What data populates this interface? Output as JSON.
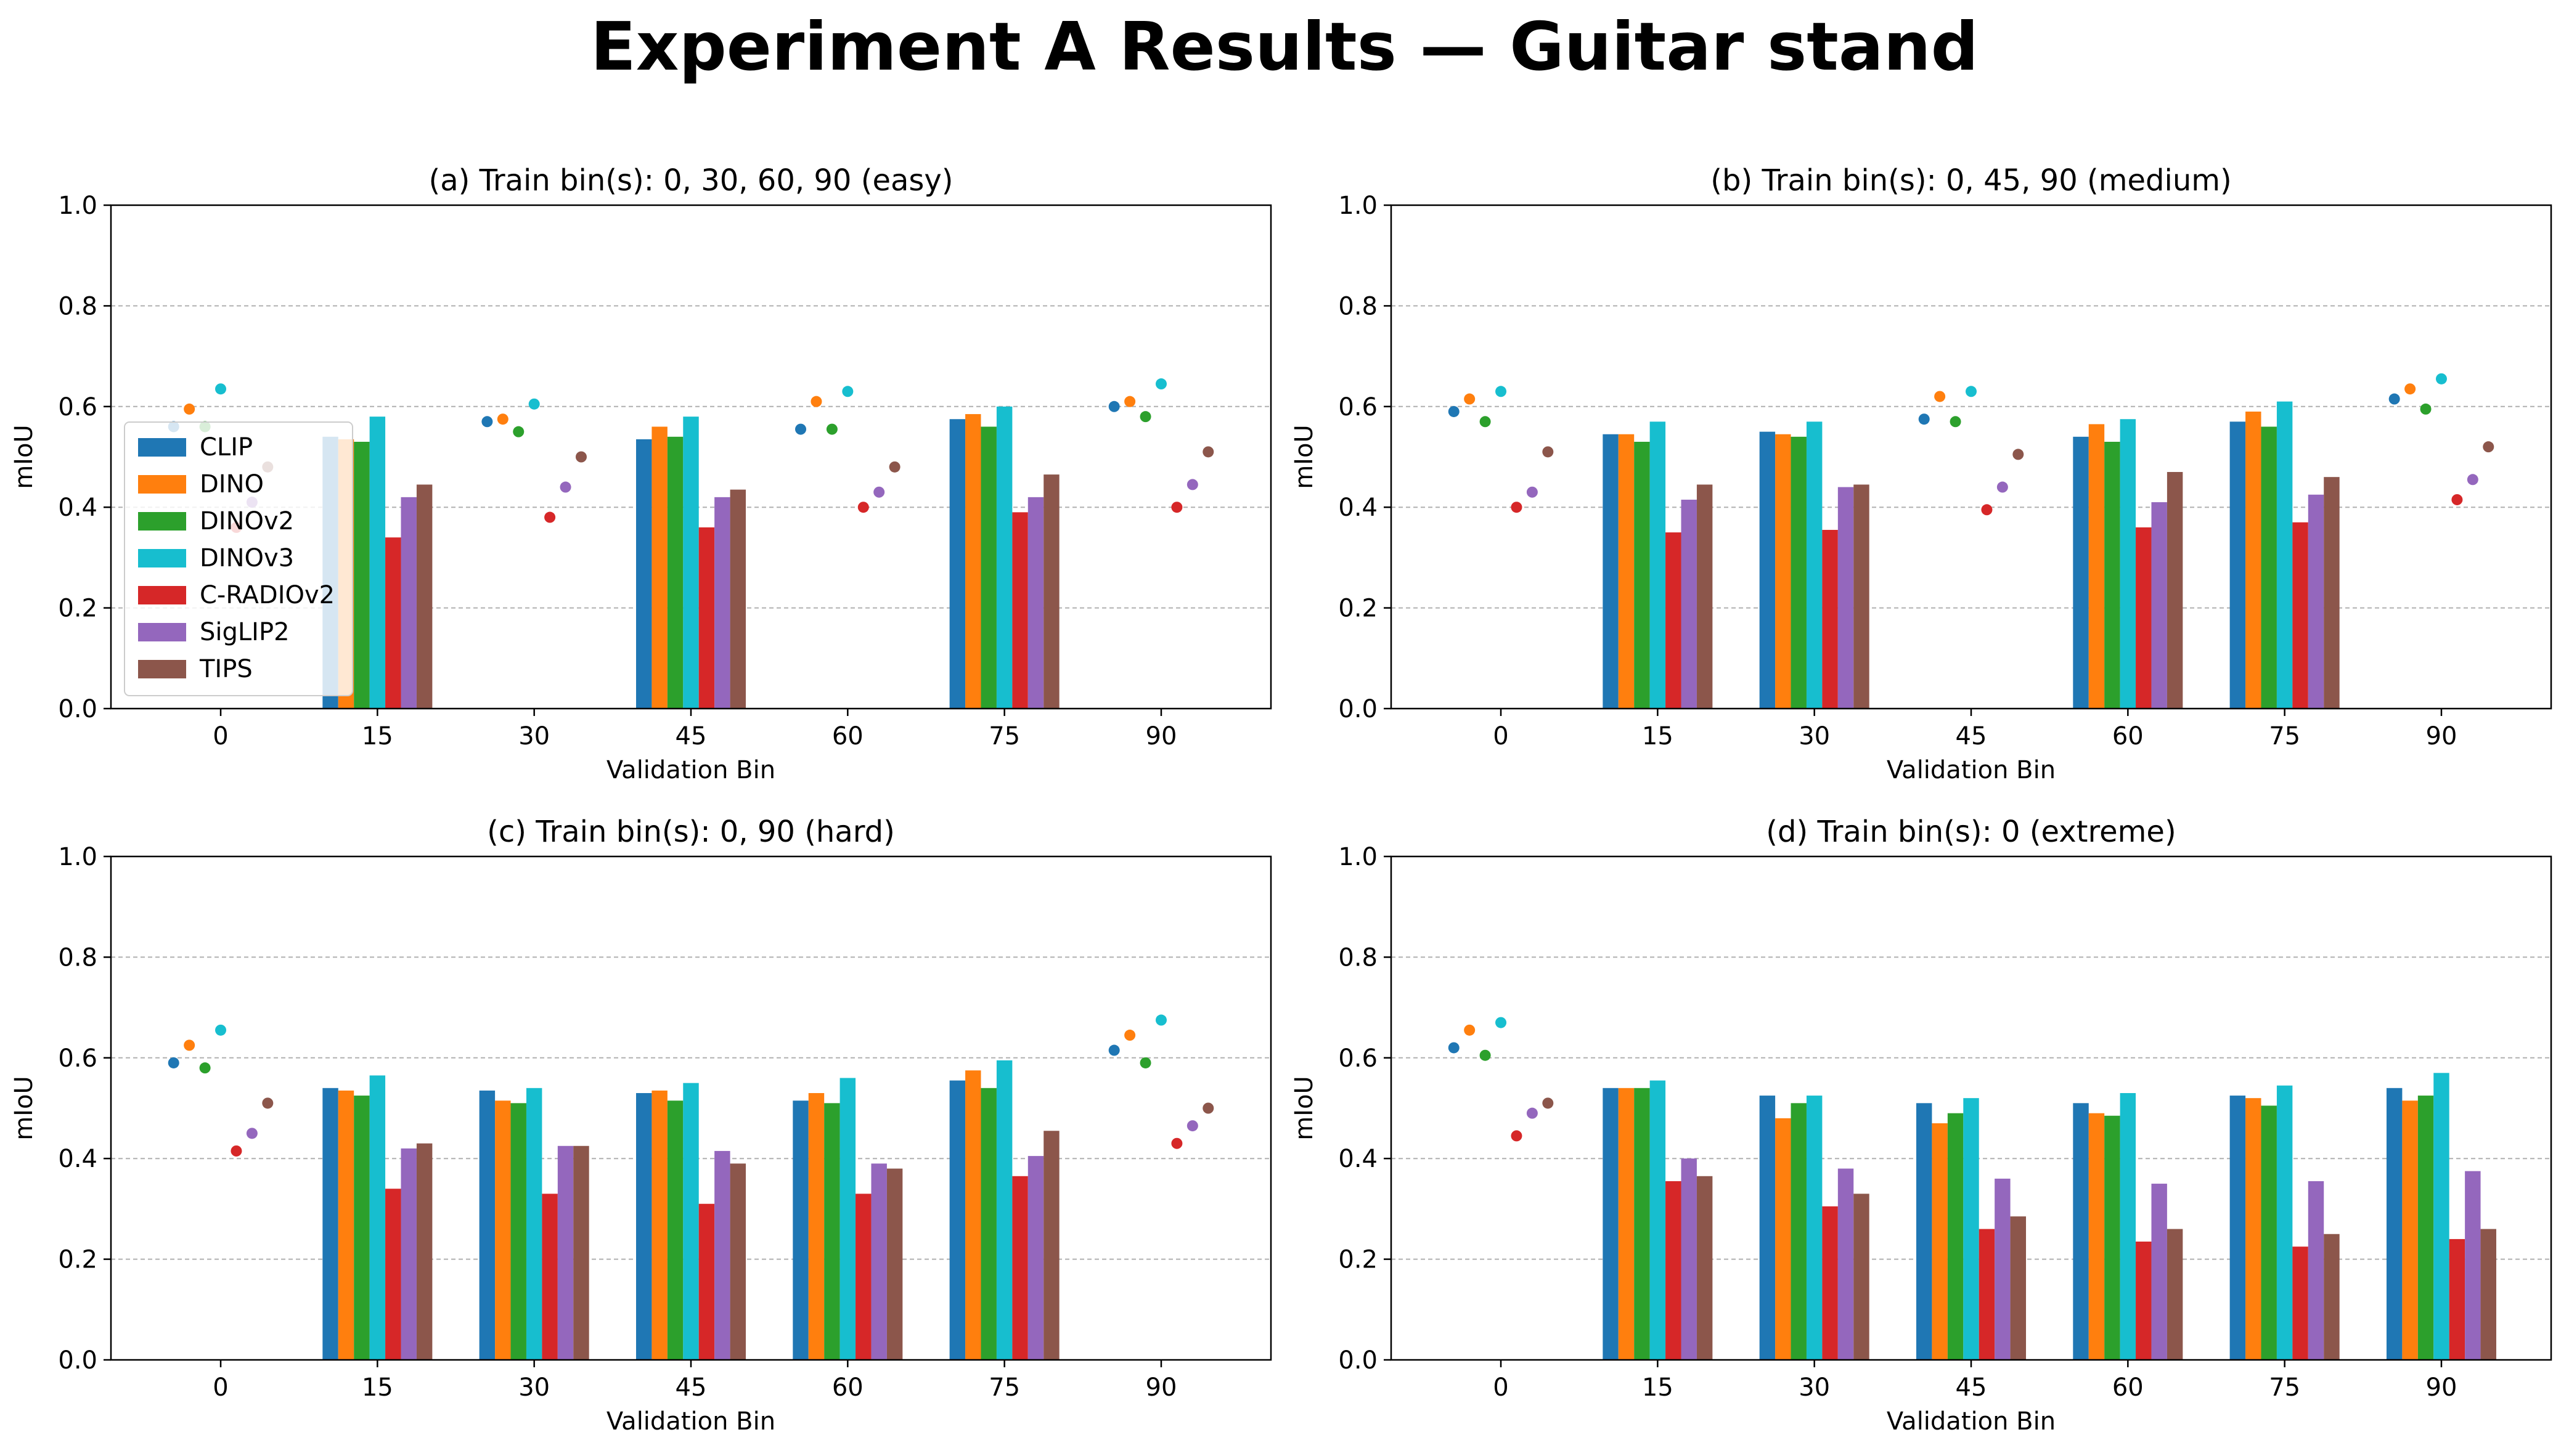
{
  "title": "Experiment A Results — Guitar stand",
  "colors": {
    "CLIP": "#1f77b4",
    "DINO": "#ff7f0e",
    "DINOv2": "#2ca02c",
    "DINOv3": "#17becf",
    "C-RADIOv2": "#d62728",
    "SigLIP2": "#9467bd",
    "TIPS": "#8c564b"
  },
  "chart_data": [
    {
      "type": "bar",
      "title": "(a) Train bin(s): 0, 30, 60, 90 (easy)",
      "xlabel": "Validation Bin",
      "ylabel": "mIoU",
      "ylim": [
        0,
        1.0
      ],
      "yticks": [
        "0.0",
        "0.2",
        "0.4",
        "0.6",
        "0.8",
        "1.0"
      ],
      "grid": "y dashed",
      "legend": "center-left",
      "categories": [
        "0",
        "15",
        "30",
        "45",
        "60",
        "75",
        "90"
      ],
      "train_bins": [
        "0",
        "30",
        "60",
        "90"
      ],
      "series": [
        {
          "name": "CLIP",
          "values": [
            0.56,
            0.54,
            0.57,
            0.535,
            0.555,
            0.575,
            0.6
          ]
        },
        {
          "name": "DINO",
          "values": [
            0.595,
            0.535,
            0.575,
            0.56,
            0.61,
            0.585,
            0.61
          ]
        },
        {
          "name": "DINOv2",
          "values": [
            0.56,
            0.53,
            0.55,
            0.54,
            0.555,
            0.56,
            0.58
          ]
        },
        {
          "name": "DINOv3",
          "values": [
            0.635,
            0.58,
            0.605,
            0.58,
            0.63,
            0.6,
            0.645
          ]
        },
        {
          "name": "C-RADIOv2",
          "values": [
            0.36,
            0.34,
            0.38,
            0.36,
            0.4,
            0.39,
            0.4
          ]
        },
        {
          "name": "SigLIP2",
          "values": [
            0.41,
            0.42,
            0.44,
            0.42,
            0.43,
            0.42,
            0.445
          ]
        },
        {
          "name": "TIPS",
          "values": [
            0.48,
            0.445,
            0.5,
            0.435,
            0.48,
            0.465,
            0.51
          ]
        }
      ]
    },
    {
      "type": "bar",
      "title": "(b) Train bin(s): 0, 45, 90 (medium)",
      "xlabel": "Validation Bin",
      "ylabel": "mIoU",
      "ylim": [
        0,
        1.0
      ],
      "yticks": [
        "0.0",
        "0.2",
        "0.4",
        "0.6",
        "0.8",
        "1.0"
      ],
      "grid": "y dashed",
      "categories": [
        "0",
        "15",
        "30",
        "45",
        "60",
        "75",
        "90"
      ],
      "train_bins": [
        "0",
        "45",
        "90"
      ],
      "series": [
        {
          "name": "CLIP",
          "values": [
            0.59,
            0.545,
            0.55,
            0.575,
            0.54,
            0.57,
            0.615
          ]
        },
        {
          "name": "DINO",
          "values": [
            0.615,
            0.545,
            0.545,
            0.62,
            0.565,
            0.59,
            0.635
          ]
        },
        {
          "name": "DINOv2",
          "values": [
            0.57,
            0.53,
            0.54,
            0.57,
            0.53,
            0.56,
            0.595
          ]
        },
        {
          "name": "DINOv3",
          "values": [
            0.63,
            0.57,
            0.57,
            0.63,
            0.575,
            0.61,
            0.655
          ]
        },
        {
          "name": "C-RADIOv2",
          "values": [
            0.4,
            0.35,
            0.355,
            0.395,
            0.36,
            0.37,
            0.415
          ]
        },
        {
          "name": "SigLIP2",
          "values": [
            0.43,
            0.415,
            0.44,
            0.44,
            0.41,
            0.425,
            0.455
          ]
        },
        {
          "name": "TIPS",
          "values": [
            0.51,
            0.445,
            0.445,
            0.505,
            0.47,
            0.46,
            0.52
          ]
        }
      ]
    },
    {
      "type": "bar",
      "title": "(c) Train bin(s): 0, 90 (hard)",
      "xlabel": "Validation Bin",
      "ylabel": "mIoU",
      "ylim": [
        0,
        1.0
      ],
      "yticks": [
        "0.0",
        "0.2",
        "0.4",
        "0.6",
        "0.8",
        "1.0"
      ],
      "grid": "y dashed",
      "categories": [
        "0",
        "15",
        "30",
        "45",
        "60",
        "75",
        "90"
      ],
      "train_bins": [
        "0",
        "90"
      ],
      "series": [
        {
          "name": "CLIP",
          "values": [
            0.59,
            0.54,
            0.535,
            0.53,
            0.515,
            0.555,
            0.615
          ]
        },
        {
          "name": "DINO",
          "values": [
            0.625,
            0.535,
            0.515,
            0.535,
            0.53,
            0.575,
            0.645
          ]
        },
        {
          "name": "DINOv2",
          "values": [
            0.58,
            0.525,
            0.51,
            0.515,
            0.51,
            0.54,
            0.59
          ]
        },
        {
          "name": "DINOv3",
          "values": [
            0.655,
            0.565,
            0.54,
            0.55,
            0.56,
            0.595,
            0.675
          ]
        },
        {
          "name": "C-RADIOv2",
          "values": [
            0.415,
            0.34,
            0.33,
            0.31,
            0.33,
            0.365,
            0.43
          ]
        },
        {
          "name": "SigLIP2",
          "values": [
            0.45,
            0.42,
            0.425,
            0.415,
            0.39,
            0.405,
            0.465
          ]
        },
        {
          "name": "TIPS",
          "values": [
            0.51,
            0.43,
            0.425,
            0.39,
            0.38,
            0.455,
            0.5
          ]
        }
      ]
    },
    {
      "type": "bar",
      "title": "(d) Train bin(s): 0 (extreme)",
      "xlabel": "Validation Bin",
      "ylabel": "mIoU",
      "ylim": [
        0,
        1.0
      ],
      "yticks": [
        "0.0",
        "0.2",
        "0.4",
        "0.6",
        "0.8",
        "1.0"
      ],
      "grid": "y dashed",
      "categories": [
        "0",
        "15",
        "30",
        "45",
        "60",
        "75",
        "90"
      ],
      "train_bins": [
        "0"
      ],
      "series": [
        {
          "name": "CLIP",
          "values": [
            0.62,
            0.54,
            0.525,
            0.51,
            0.51,
            0.525,
            0.54
          ]
        },
        {
          "name": "DINO",
          "values": [
            0.655,
            0.54,
            0.48,
            0.47,
            0.49,
            0.52,
            0.515
          ]
        },
        {
          "name": "DINOv2",
          "values": [
            0.605,
            0.54,
            0.51,
            0.49,
            0.485,
            0.505,
            0.525
          ]
        },
        {
          "name": "DINOv3",
          "values": [
            0.67,
            0.555,
            0.525,
            0.52,
            0.53,
            0.545,
            0.57
          ]
        },
        {
          "name": "C-RADIOv2",
          "values": [
            0.445,
            0.355,
            0.305,
            0.26,
            0.235,
            0.225,
            0.24
          ]
        },
        {
          "name": "SigLIP2",
          "values": [
            0.49,
            0.4,
            0.38,
            0.36,
            0.35,
            0.355,
            0.375
          ]
        },
        {
          "name": "TIPS",
          "values": [
            0.51,
            0.365,
            0.33,
            0.285,
            0.26,
            0.25,
            0.26
          ]
        }
      ]
    }
  ]
}
